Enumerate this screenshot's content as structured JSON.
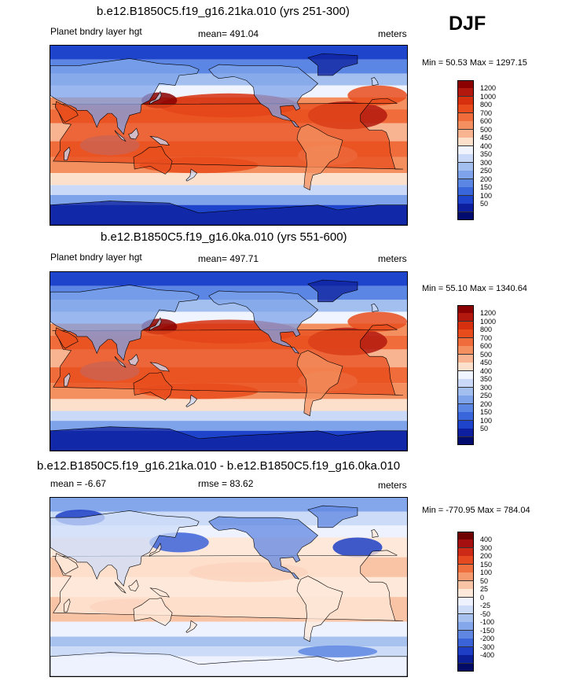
{
  "season": "DJF",
  "panels": [
    {
      "title": "b.e12.B1850C5.f19_g16.21ka.010 (yrs 251-300)",
      "variable": "Planet bndry layer hgt",
      "mean_label": "mean= 491.04",
      "rmse_label": "",
      "units": "meters",
      "minmax": "Min =  50.53 Max = 1297.15",
      "map_type": "absolute",
      "colorbar_labels": [
        "1200",
        "1000",
        "800",
        "700",
        "600",
        "500",
        "450",
        "400",
        "350",
        "300",
        "250",
        "200",
        "150",
        "100",
        "50"
      ]
    },
    {
      "title": "b.e12.B1850C5.f19_g16.0ka.010 (yrs 551-600)",
      "variable": "Planet bndry layer hgt",
      "mean_label": "mean= 497.71",
      "rmse_label": "",
      "units": "meters",
      "minmax": "Min =  55.10 Max = 1340.64",
      "map_type": "absolute",
      "colorbar_labels": [
        "1200",
        "1000",
        "800",
        "700",
        "600",
        "500",
        "450",
        "400",
        "350",
        "300",
        "250",
        "200",
        "150",
        "100",
        "50"
      ]
    },
    {
      "title": "b.e12.B1850C5.f19_g16.21ka.010 - b.e12.B1850C5.f19_g16.0ka.010",
      "variable": "",
      "mean_label": "mean =  -6.67",
      "rmse_label": "rmse =  83.62",
      "units": "meters",
      "minmax": "Min = -770.95 Max = 784.04",
      "map_type": "difference",
      "colorbar_labels": [
        "400",
        "300",
        "200",
        "150",
        "100",
        "50",
        "25",
        "0",
        "-25",
        "-50",
        "-100",
        "-150",
        "-200",
        "-300",
        "-400"
      ]
    }
  ],
  "colors": {
    "absolute_scale": [
      "#8b0000",
      "#b3180e",
      "#d6300f",
      "#e84c1c",
      "#f06c3a",
      "#f4905f",
      "#f8b490",
      "#fde0cc",
      "#f0f4ff",
      "#c9d9f7",
      "#a3bff0",
      "#7ea3ea",
      "#5b86e4",
      "#3a66dc",
      "#1f44cc",
      "#0d1f9e",
      "#020c6e"
    ],
    "difference_scale": [
      "#6e0000",
      "#a50f0f",
      "#cc2a16",
      "#e5491f",
      "#f06f3e",
      "#f59a6f",
      "#f9c3a5",
      "#fde8da",
      "#eef2ff",
      "#ccdcf8",
      "#a8c2f0",
      "#84a6ea",
      "#5f87e2",
      "#3b63d8",
      "#1e3fc5",
      "#0b1f99",
      "#030b66"
    ]
  }
}
